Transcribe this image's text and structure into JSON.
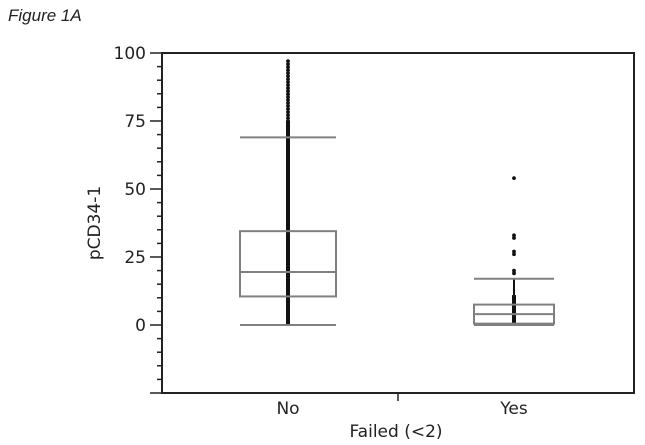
{
  "figure_label": "Figure 1A",
  "chart_data": {
    "type": "box",
    "title": "",
    "xlabel": "Failed (<2)",
    "ylabel": "pCD34-1",
    "categories": [
      "No",
      "Yes"
    ],
    "ylim": [
      -25,
      100
    ],
    "yticks": [
      0,
      25,
      50,
      75,
      100
    ],
    "ytick_labels": [
      "0",
      "25",
      "50",
      "75",
      "100"
    ],
    "grid": false,
    "legend": null,
    "series": [
      {
        "name": "No",
        "whisker_low": 0,
        "q1": 10.5,
        "median": 19.5,
        "q3": 34.5,
        "whisker_high": 69,
        "points_range": [
          0,
          98
        ],
        "notes": "dense column of individual points spanning 0 to ~98"
      },
      {
        "name": "Yes",
        "whisker_low": 0,
        "q1": 0.5,
        "median": 4,
        "q3": 7.5,
        "whisker_high": 17,
        "outliers": [
          19,
          20,
          26,
          27,
          32,
          33,
          54
        ],
        "points_range": [
          0,
          54
        ]
      }
    ],
    "colors": {
      "box": "#808080",
      "points": "#111111",
      "axis": "#222222"
    }
  }
}
